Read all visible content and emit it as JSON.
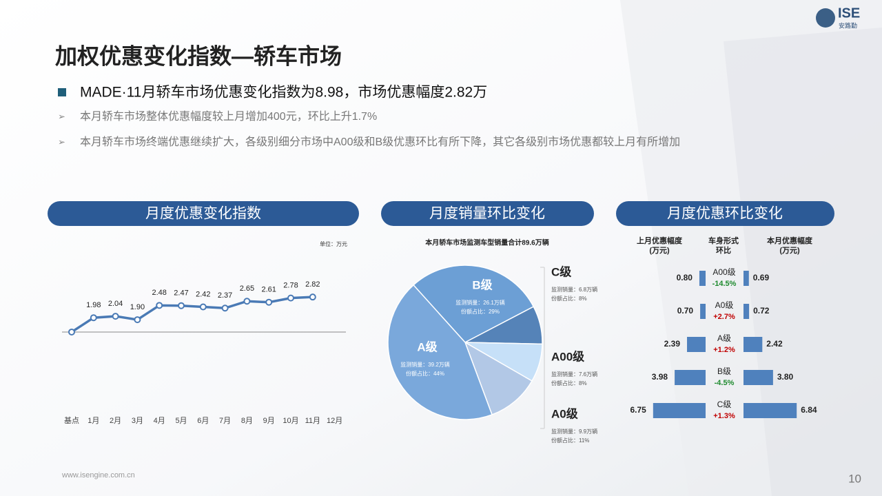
{
  "logo": {
    "mark": "ISE",
    "name": "安路勤"
  },
  "title": "加权优惠变化指数—轿车市场",
  "headline": "MADE·11月轿车市场优惠变化指数为8.98，市场优惠幅度2.82万",
  "bullets": [
    "本月轿车市场整体优惠幅度较上月增加400元，环比上升1.7%",
    "本月轿车市场终端优惠继续扩大，各级别细分市场中A00级和B级优惠环比有所下降，其它各级别市场优惠都较上月有所增加"
  ],
  "chart_data": [
    {
      "type": "line",
      "title": "月度优惠变化指数",
      "unit": "单位：万元",
      "categories": [
        "基点",
        "1月",
        "2月",
        "3月",
        "4月",
        "5月",
        "6月",
        "7月",
        "8月",
        "9月",
        "10月",
        "11月",
        "12月"
      ],
      "values": [
        1.4,
        1.98,
        2.04,
        1.9,
        2.48,
        2.47,
        2.42,
        2.37,
        2.65,
        2.61,
        2.78,
        2.82,
        null
      ],
      "value_labels": [
        null,
        "1.98",
        "2.04",
        "1.90",
        "2.48",
        "2.47",
        "2.42",
        "2.37",
        "2.65",
        "2.61",
        "2.78",
        "2.82",
        null
      ],
      "ylim": [
        0,
        4
      ],
      "color": "#4a7ab5"
    },
    {
      "type": "pie",
      "title": "月度销量环比变化",
      "subtitle": "本月轿车市场监测车型销量合计89.6万辆",
      "categories": [
        "B级",
        "C级",
        "A00级",
        "A0级",
        "A级"
      ],
      "values": [
        29,
        8,
        8,
        11,
        44
      ],
      "value_labels": [
        "份额占比：29%",
        "份额占比：8%",
        "份额占比：8%",
        "份额占比：11%",
        "份额占比：44%"
      ],
      "sales_labels": [
        "监测销量：26.1万辆",
        "监测销量：6.8万辆",
        "监测销量：7.6万辆",
        "监测销量：9.9万辆",
        "监测销量：39.2万辆"
      ],
      "colors": [
        "#6c9fd5",
        "#5583b8",
        "#c6e0f8",
        "#b2c8e6",
        "#7aa8db"
      ]
    },
    {
      "type": "butterfly",
      "title": "月度优惠环比变化",
      "categories": [
        "A00级",
        "A0级",
        "A级",
        "B级",
        "C级"
      ],
      "xlim": [
        0,
        7
      ],
      "series": [
        {
          "name": [
            "上月优惠幅度",
            "(万元)"
          ],
          "color": "#4f81bd",
          "values": [
            0.8,
            0.7,
            2.39,
            3.98,
            6.75
          ],
          "value_labels": [
            "0.80",
            "0.70",
            "2.39",
            "3.98",
            "6.75"
          ]
        },
        {
          "name": [
            "本月优惠幅度",
            "(万元)"
          ],
          "color": "#4f81bd",
          "values": [
            0.69,
            0.72,
            2.42,
            3.8,
            6.84
          ],
          "value_labels": [
            "0.69",
            "0.72",
            "2.42",
            "3.80",
            "6.84"
          ]
        }
      ],
      "change_header": [
        "车身形式",
        "环比"
      ],
      "change": [
        -14.5,
        2.7,
        1.2,
        -4.5,
        1.3
      ],
      "change_labels": [
        "-14.5%",
        "+2.7%",
        "+1.2%",
        "-4.5%",
        "+1.3%"
      ],
      "change_colors": {
        "down": "#1e8a2e",
        "up": "#c00000"
      }
    }
  ],
  "footer": {
    "url": "www.isengine.com.cn",
    "page": "10"
  }
}
